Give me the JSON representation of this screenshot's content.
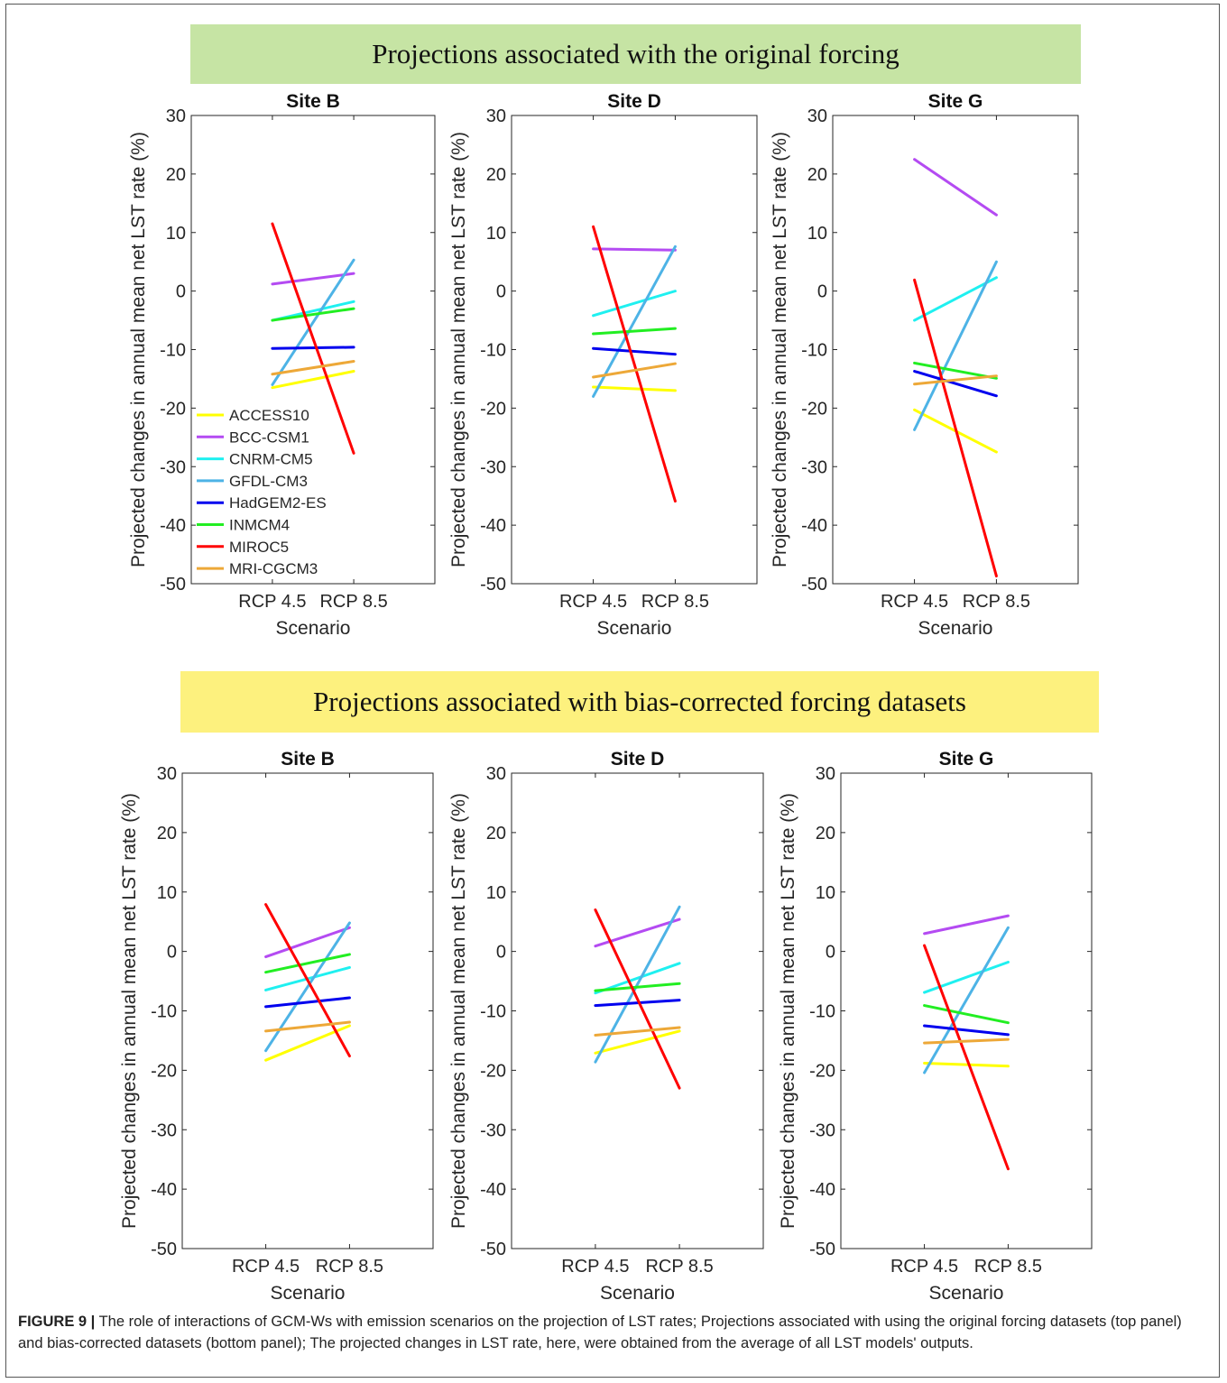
{
  "panels": {
    "top_banner": "Projections associated with the original forcing",
    "bottom_banner": "Projections associated with bias-corrected forcing datasets"
  },
  "caption": {
    "label": "FIGURE 9 |",
    "text": "The role of interactions of GCM-Ws with emission scenarios on the projection of LST rates; Projections associated with using the original forcing datasets (top panel) and bias-corrected datasets (bottom panel); The projected changes in LST rate, here, were obtained from the average of all LST models' outputs."
  },
  "models": [
    {
      "name": "ACCESS10",
      "color": "#ffff00"
    },
    {
      "name": "BCC-CSM1",
      "color": "#b44bf2"
    },
    {
      "name": "CNRM-CM5",
      "color": "#1ff0f0"
    },
    {
      "name": "GFDL-CM3",
      "color": "#4db3e6"
    },
    {
      "name": "HadGEM2-ES",
      "color": "#0000ee"
    },
    {
      "name": "INMCM4",
      "color": "#22ee22"
    },
    {
      "name": "MIROC5",
      "color": "#ff0000"
    },
    {
      "name": "MRI-CGCM3",
      "color": "#eda838"
    }
  ],
  "chart_data": [
    {
      "type": "line",
      "panel": "original",
      "title": "Site B",
      "xlabel": "Scenario",
      "ylabel": "Projected changes in annual mean net LST rate (%)",
      "categories": [
        "RCP 4.5",
        "RCP 8.5"
      ],
      "ylim": [
        -50,
        30
      ],
      "yticks": [
        30,
        20,
        10,
        0,
        -10,
        -20,
        -30,
        -40,
        -50
      ],
      "legend": "lower-left",
      "series": [
        {
          "name": "ACCESS10",
          "values": [
            -16.5,
            -13.7
          ]
        },
        {
          "name": "BCC-CSM1",
          "values": [
            1.2,
            3.0
          ]
        },
        {
          "name": "CNRM-CM5",
          "values": [
            -5.0,
            -1.8
          ]
        },
        {
          "name": "GFDL-CM3",
          "values": [
            -16.0,
            5.3
          ]
        },
        {
          "name": "HadGEM2-ES",
          "values": [
            -9.8,
            -9.6
          ]
        },
        {
          "name": "INMCM4",
          "values": [
            -5.0,
            -3.0
          ]
        },
        {
          "name": "MIROC5",
          "values": [
            11.5,
            -27.7
          ]
        },
        {
          "name": "MRI-CGCM3",
          "values": [
            -14.2,
            -12.0
          ]
        }
      ]
    },
    {
      "type": "line",
      "panel": "original",
      "title": "Site D",
      "xlabel": "Scenario",
      "ylabel": "Projected changes in annual mean net LST rate (%)",
      "categories": [
        "RCP 4.5",
        "RCP 8.5"
      ],
      "ylim": [
        -50,
        30
      ],
      "yticks": [
        30,
        20,
        10,
        0,
        -10,
        -20,
        -30,
        -40,
        -50
      ],
      "series": [
        {
          "name": "ACCESS10",
          "values": [
            -16.4,
            -17.0
          ]
        },
        {
          "name": "BCC-CSM1",
          "values": [
            7.2,
            7.0
          ]
        },
        {
          "name": "CNRM-CM5",
          "values": [
            -4.2,
            0.0
          ]
        },
        {
          "name": "GFDL-CM3",
          "values": [
            -18.0,
            7.6
          ]
        },
        {
          "name": "HadGEM2-ES",
          "values": [
            -9.8,
            -10.8
          ]
        },
        {
          "name": "INMCM4",
          "values": [
            -7.3,
            -6.4
          ]
        },
        {
          "name": "MIROC5",
          "values": [
            11.0,
            -35.9
          ]
        },
        {
          "name": "MRI-CGCM3",
          "values": [
            -14.7,
            -12.4
          ]
        }
      ]
    },
    {
      "type": "line",
      "panel": "original",
      "title": "Site G",
      "xlabel": "Scenario",
      "ylabel": "Projected changes in annual mean net LST rate (%)",
      "categories": [
        "RCP 4.5",
        "RCP 8.5"
      ],
      "ylim": [
        -50,
        30
      ],
      "yticks": [
        30,
        20,
        10,
        0,
        -10,
        -20,
        -30,
        -40,
        -50
      ],
      "series": [
        {
          "name": "ACCESS10",
          "values": [
            -20.3,
            -27.5
          ]
        },
        {
          "name": "BCC-CSM1",
          "values": [
            22.5,
            13.0
          ]
        },
        {
          "name": "CNRM-CM5",
          "values": [
            -5.0,
            2.3
          ]
        },
        {
          "name": "GFDL-CM3",
          "values": [
            -23.7,
            5.0
          ]
        },
        {
          "name": "HadGEM2-ES",
          "values": [
            -13.7,
            -17.9
          ]
        },
        {
          "name": "INMCM4",
          "values": [
            -12.3,
            -14.9
          ]
        },
        {
          "name": "MIROC5",
          "values": [
            1.9,
            -48.7
          ]
        },
        {
          "name": "MRI-CGCM3",
          "values": [
            -15.9,
            -14.5
          ]
        }
      ]
    },
    {
      "type": "line",
      "panel": "bias-corrected",
      "title": "Site B",
      "xlabel": "Scenario",
      "ylabel": "Projected changes in annual mean net LST rate (%)",
      "categories": [
        "RCP 4.5",
        "RCP 8.5"
      ],
      "ylim": [
        -50,
        30
      ],
      "yticks": [
        30,
        20,
        10,
        0,
        -10,
        -20,
        -30,
        -40,
        -50
      ],
      "series": [
        {
          "name": "ACCESS10",
          "values": [
            -18.3,
            -12.5
          ]
        },
        {
          "name": "BCC-CSM1",
          "values": [
            -0.9,
            4.0
          ]
        },
        {
          "name": "CNRM-CM5",
          "values": [
            -6.5,
            -2.7
          ]
        },
        {
          "name": "GFDL-CM3",
          "values": [
            -16.7,
            4.8
          ]
        },
        {
          "name": "HadGEM2-ES",
          "values": [
            -9.3,
            -7.8
          ]
        },
        {
          "name": "INMCM4",
          "values": [
            -3.5,
            -0.5
          ]
        },
        {
          "name": "MIROC5",
          "values": [
            7.9,
            -17.6
          ]
        },
        {
          "name": "MRI-CGCM3",
          "values": [
            -13.4,
            -11.9
          ]
        }
      ]
    },
    {
      "type": "line",
      "panel": "bias-corrected",
      "title": "Site D",
      "xlabel": "Scenario",
      "ylabel": "Projected changes in annual mean net LST rate (%)",
      "categories": [
        "RCP 4.5",
        "RCP 8.5"
      ],
      "ylim": [
        -50,
        30
      ],
      "yticks": [
        30,
        20,
        10,
        0,
        -10,
        -20,
        -30,
        -40,
        -50
      ],
      "series": [
        {
          "name": "ACCESS10",
          "values": [
            -17.1,
            -13.4
          ]
        },
        {
          "name": "BCC-CSM1",
          "values": [
            0.9,
            5.4
          ]
        },
        {
          "name": "CNRM-CM5",
          "values": [
            -7.0,
            -2.0
          ]
        },
        {
          "name": "GFDL-CM3",
          "values": [
            -18.6,
            7.5
          ]
        },
        {
          "name": "HadGEM2-ES",
          "values": [
            -9.1,
            -8.2
          ]
        },
        {
          "name": "INMCM4",
          "values": [
            -6.6,
            -5.4
          ]
        },
        {
          "name": "MIROC5",
          "values": [
            7.0,
            -23.0
          ]
        },
        {
          "name": "MRI-CGCM3",
          "values": [
            -14.1,
            -12.8
          ]
        }
      ]
    },
    {
      "type": "line",
      "panel": "bias-corrected",
      "title": "Site G",
      "xlabel": "Scenario",
      "ylabel": "Projected changes in annual mean net LST rate (%)",
      "categories": [
        "RCP 4.5",
        "RCP 8.5"
      ],
      "ylim": [
        -50,
        30
      ],
      "yticks": [
        30,
        20,
        10,
        0,
        -10,
        -20,
        -30,
        -40,
        -50
      ],
      "series": [
        {
          "name": "ACCESS10",
          "values": [
            -18.8,
            -19.3
          ]
        },
        {
          "name": "BCC-CSM1",
          "values": [
            3.0,
            6.0
          ]
        },
        {
          "name": "CNRM-CM5",
          "values": [
            -6.9,
            -1.8
          ]
        },
        {
          "name": "GFDL-CM3",
          "values": [
            -20.4,
            4.0
          ]
        },
        {
          "name": "HadGEM2-ES",
          "values": [
            -12.5,
            -14.0
          ]
        },
        {
          "name": "INMCM4",
          "values": [
            -9.1,
            -12.0
          ]
        },
        {
          "name": "MIROC5",
          "values": [
            1.0,
            -36.6
          ]
        },
        {
          "name": "MRI-CGCM3",
          "values": [
            -15.4,
            -14.8
          ]
        }
      ]
    }
  ]
}
